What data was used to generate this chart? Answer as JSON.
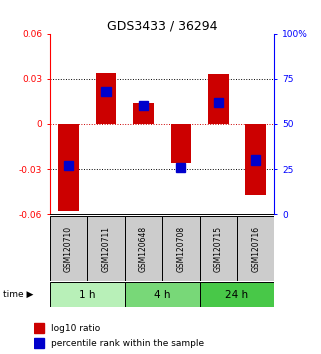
{
  "title": "GDS3433 / 36294",
  "samples": [
    "GSM120710",
    "GSM120711",
    "GSM120648",
    "GSM120708",
    "GSM120715",
    "GSM120716"
  ],
  "log10_ratio": [
    -0.058,
    0.034,
    0.014,
    -0.026,
    0.033,
    -0.047
  ],
  "percentile_rank": [
    27,
    68,
    60,
    26,
    62,
    30
  ],
  "groups": [
    {
      "label": "1 h",
      "indices": [
        0,
        1
      ],
      "color": "#b8f0b8"
    },
    {
      "label": "4 h",
      "indices": [
        2,
        3
      ],
      "color": "#78d878"
    },
    {
      "label": "24 h",
      "indices": [
        4,
        5
      ],
      "color": "#48c848"
    }
  ],
  "ylim_left": [
    -0.06,
    0.06
  ],
  "ylim_right": [
    0,
    100
  ],
  "yticks_left": [
    -0.06,
    -0.03,
    0,
    0.03,
    0.06
  ],
  "yticks_right": [
    0,
    25,
    50,
    75,
    100
  ],
  "ytick_labels_right": [
    "0",
    "25",
    "50",
    "75",
    "100%"
  ],
  "bar_color": "#cc0000",
  "blue_color": "#0000cc",
  "bar_width": 0.55,
  "background_color": "#ffffff",
  "label_sample_bg": "#cccccc",
  "zero_line_color": "#cc0000",
  "grid_color": "#000000",
  "title_fontsize": 9,
  "tick_fontsize": 6.5,
  "legend_fontsize": 6.5,
  "sample_fontsize": 5.5,
  "group_fontsize": 7.5
}
